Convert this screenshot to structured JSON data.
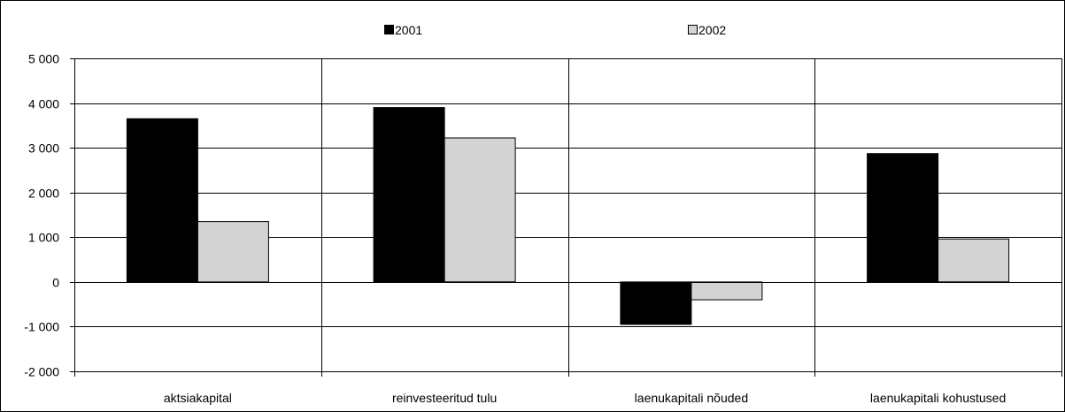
{
  "chart_data": {
    "type": "bar",
    "title": "",
    "xlabel": "",
    "ylabel": "",
    "categories": [
      "aktsiakapital",
      "reinvesteeritud tulu",
      "laenukapitali nõuded",
      "laenukapitali kohustused"
    ],
    "series": [
      {
        "name": "2001",
        "values": [
          3650,
          3900,
          -950,
          2870
        ],
        "color": "#000000"
      },
      {
        "name": "2002",
        "values": [
          1350,
          3220,
          -400,
          960
        ],
        "color": "#d3d3d3"
      }
    ],
    "ylim": [
      -2000,
      5000
    ],
    "yticks": [
      5000,
      4000,
      3000,
      2000,
      1000,
      0,
      -1000,
      -2000
    ],
    "ytick_labels": [
      "5 000",
      "4 000",
      "3 000",
      "2 000",
      "1 000",
      "0",
      "-1 000",
      "-2 000"
    ],
    "grid": true,
    "legend_position": "top"
  }
}
